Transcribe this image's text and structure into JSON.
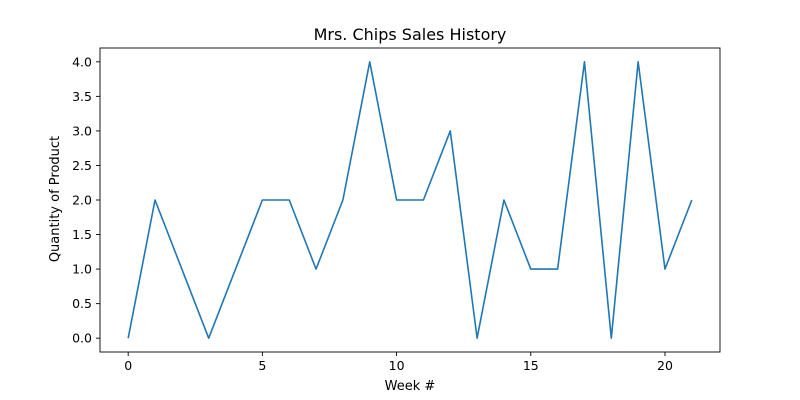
{
  "chart_data": {
    "type": "line",
    "title": "Mrs. Chips Sales History",
    "xlabel": "Week #",
    "ylabel": "Quantity of Product",
    "xlim": [
      -1.05,
      22.05
    ],
    "ylim": [
      -0.2,
      4.2
    ],
    "xticks": [
      0,
      5,
      10,
      15,
      20
    ],
    "xtick_labels": [
      "0",
      "5",
      "10",
      "15",
      "20"
    ],
    "yticks": [
      0,
      0.5,
      1,
      1.5,
      2,
      2.5,
      3,
      3.5,
      4
    ],
    "ytick_labels": [
      "0.0",
      "0.5",
      "1.0",
      "1.5",
      "2.0",
      "2.5",
      "3.0",
      "3.5",
      "4.0"
    ],
    "grid": false,
    "series": [
      {
        "color": "#1f77b4",
        "x": [
          0,
          1,
          2,
          3,
          4,
          5,
          6,
          7,
          8,
          9,
          10,
          11,
          12,
          13,
          14,
          15,
          16,
          17,
          18,
          19,
          20,
          21
        ],
        "values": [
          0,
          2,
          1,
          0,
          1,
          2,
          2,
          1,
          2,
          4,
          2,
          2,
          3,
          0,
          2,
          1,
          1,
          4,
          0,
          4,
          1,
          2
        ]
      }
    ]
  }
}
